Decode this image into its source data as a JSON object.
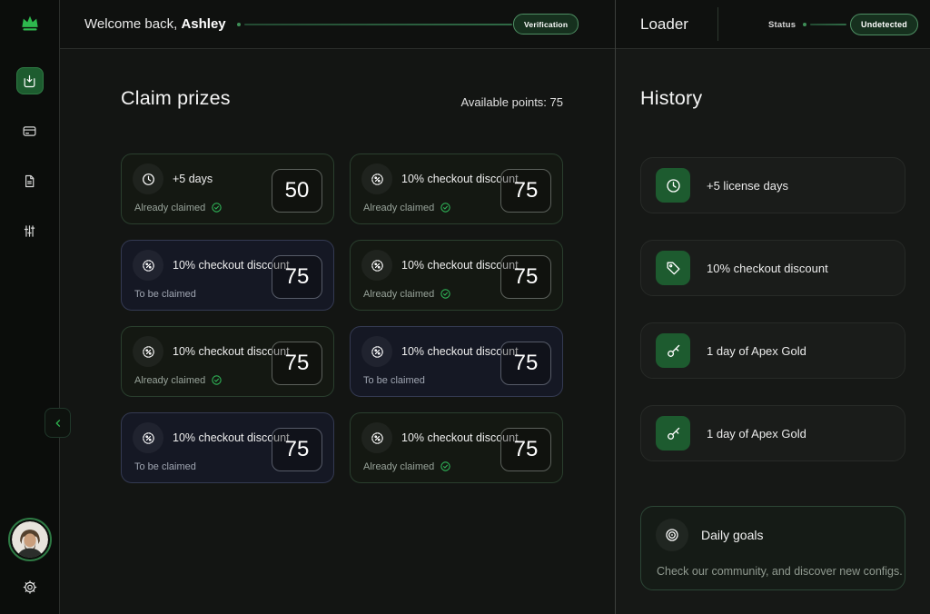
{
  "theme": {
    "accent_green": "#2eb850",
    "claimed_card_border": "#2a3f2e",
    "pending_card_border": "#343a52",
    "history_icon_bg": "#1d5b2f",
    "badge_bg": "#16301e",
    "badge_border": "#4e8f63"
  },
  "sidebar": {
    "logo_icon": "crown-icon",
    "nav": [
      {
        "icon": "download-icon",
        "active": true
      },
      {
        "icon": "credit-card-icon",
        "active": false
      },
      {
        "icon": "document-icon",
        "active": false
      },
      {
        "icon": "sliders-icon",
        "active": false
      }
    ],
    "collapse_icon": "chevron-left-icon",
    "avatar_icon": "user-avatar",
    "settings_icon": "gear-icon"
  },
  "header": {
    "welcome_prefix": "Welcome back, ",
    "username": "Ashley",
    "verification_badge": "Verification",
    "app_title": "Loader",
    "status_label": "Status",
    "status_badge": "Undetected"
  },
  "main": {
    "title": "Claim prizes",
    "available_points_label": "Available points: 75",
    "prizes": [
      {
        "icon": "clock-icon",
        "label": "+5 days",
        "status": "Already claimed",
        "claimed": true,
        "points": "50"
      },
      {
        "icon": "discount-icon",
        "label": "10% checkout discount",
        "status": "Already claimed",
        "claimed": true,
        "points": "75"
      },
      {
        "icon": "discount-icon",
        "label": "10% checkout discount",
        "status": "To be claimed",
        "claimed": false,
        "points": "75"
      },
      {
        "icon": "discount-icon",
        "label": "10% checkout discount",
        "status": "Already claimed",
        "claimed": true,
        "points": "75"
      },
      {
        "icon": "discount-icon",
        "label": "10% checkout discount",
        "status": "Already claimed",
        "claimed": true,
        "points": "75"
      },
      {
        "icon": "discount-icon",
        "label": "10% checkout discount",
        "status": "To be claimed",
        "claimed": false,
        "points": "75"
      },
      {
        "icon": "discount-icon",
        "label": "10% checkout discount",
        "status": "To be claimed",
        "claimed": false,
        "points": "75"
      },
      {
        "icon": "discount-icon",
        "label": "10% checkout discount",
        "status": "Already claimed",
        "claimed": true,
        "points": "75"
      }
    ],
    "claimed_check_icon": "check-circle-icon"
  },
  "history": {
    "title": "History",
    "items": [
      {
        "icon": "clock-icon",
        "label": "+5 license days"
      },
      {
        "icon": "tag-icon",
        "label": "10% checkout discount"
      },
      {
        "icon": "key-icon",
        "label": "1 day of Apex Gold"
      },
      {
        "icon": "key-icon",
        "label": "1 day of Apex Gold"
      }
    ],
    "daily_goals": {
      "icon": "target-icon",
      "title": "Daily goals",
      "description": "Check our community, and discover new configs."
    }
  }
}
